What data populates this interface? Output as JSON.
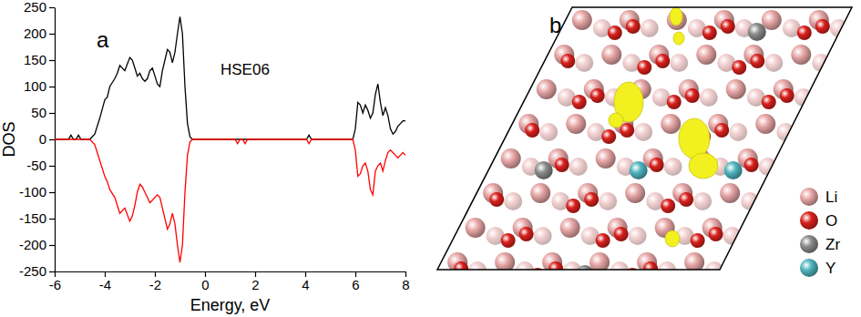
{
  "chart_data": {
    "type": "line",
    "annotations": [
      "a",
      "HSE06"
    ],
    "x_label": "Energy, eV",
    "y_label": "DOS",
    "xlim": [
      -6,
      8
    ],
    "xticks": [
      -6,
      -4,
      -2,
      0,
      2,
      4,
      6,
      8
    ],
    "ylim": [
      -250,
      250
    ],
    "yticks": [
      -250,
      -200,
      -150,
      -100,
      -50,
      0,
      50,
      100,
      150,
      200,
      250
    ],
    "grid": false,
    "x": [
      -6,
      -5.45,
      -5.35,
      -5.25,
      -5.15,
      -5.05,
      -4.95,
      -4.6,
      -4.4,
      -4.2,
      -4.0,
      -3.9,
      -3.8,
      -3.6,
      -3.5,
      -3.4,
      -3.2,
      -3.0,
      -2.9,
      -2.8,
      -2.7,
      -2.6,
      -2.5,
      -2.4,
      -2.3,
      -2.2,
      -2.1,
      -2.0,
      -1.9,
      -1.8,
      -1.7,
      -1.6,
      -1.5,
      -1.4,
      -1.3,
      -1.2,
      -1.1,
      -1.0,
      -0.9,
      -0.8,
      -0.7,
      -0.6,
      -0.5,
      1.1,
      1.2,
      1.3,
      1.4,
      1.5,
      1.6,
      1.7,
      4.05,
      4.15,
      4.25,
      5.9,
      6.0,
      6.1,
      6.2,
      6.3,
      6.4,
      6.5,
      6.6,
      6.7,
      6.8,
      6.9,
      7.0,
      7.1,
      7.2,
      7.3,
      7.4,
      7.5,
      7.6,
      7.7,
      7.8,
      7.9,
      8.0
    ],
    "series": [
      {
        "color": "#000000",
        "values": [
          0,
          0,
          8,
          0,
          0,
          8,
          0,
          0,
          10,
          40,
          75,
          80,
          100,
          115,
          125,
          140,
          130,
          155,
          150,
          135,
          120,
          125,
          115,
          110,
          115,
          130,
          135,
          120,
          105,
          100,
          130,
          150,
          170,
          165,
          145,
          165,
          200,
          232,
          200,
          100,
          30,
          5,
          0,
          0,
          0,
          0,
          0,
          0,
          0,
          0,
          0,
          8,
          0,
          0,
          20,
          70,
          65,
          50,
          65,
          55,
          40,
          50,
          85,
          105,
          70,
          45,
          60,
          45,
          20,
          10,
          15,
          25,
          30,
          35,
          35
        ]
      },
      {
        "color": "#ff0000",
        "values": [
          0,
          0,
          0,
          0,
          0,
          0,
          0,
          0,
          -10,
          -40,
          -70,
          -80,
          -95,
          -110,
          -125,
          -140,
          -130,
          -155,
          -145,
          -125,
          -100,
          -85,
          -90,
          -100,
          -110,
          -120,
          -115,
          -110,
          -105,
          -110,
          -130,
          -150,
          -170,
          -160,
          -140,
          -160,
          -200,
          -233,
          -200,
          -100,
          -30,
          -5,
          0,
          0,
          0,
          -8,
          0,
          0,
          -8,
          0,
          0,
          -8,
          0,
          0,
          -20,
          -70,
          -65,
          -50,
          -45,
          -60,
          -95,
          -105,
          -60,
          -50,
          -45,
          -60,
          -40,
          -25,
          -20,
          -25,
          -30,
          -35,
          -30,
          -25,
          -30
        ]
      }
    ]
  },
  "structure": {
    "label": "b",
    "legend": [
      {
        "name": "Li",
        "color": "#e7a6a6"
      },
      {
        "name": "O",
        "color": "#d9201c"
      },
      {
        "name": "Zr",
        "color": "#8a8a8a"
      },
      {
        "name": "Y",
        "color": "#4fb4be"
      }
    ]
  }
}
